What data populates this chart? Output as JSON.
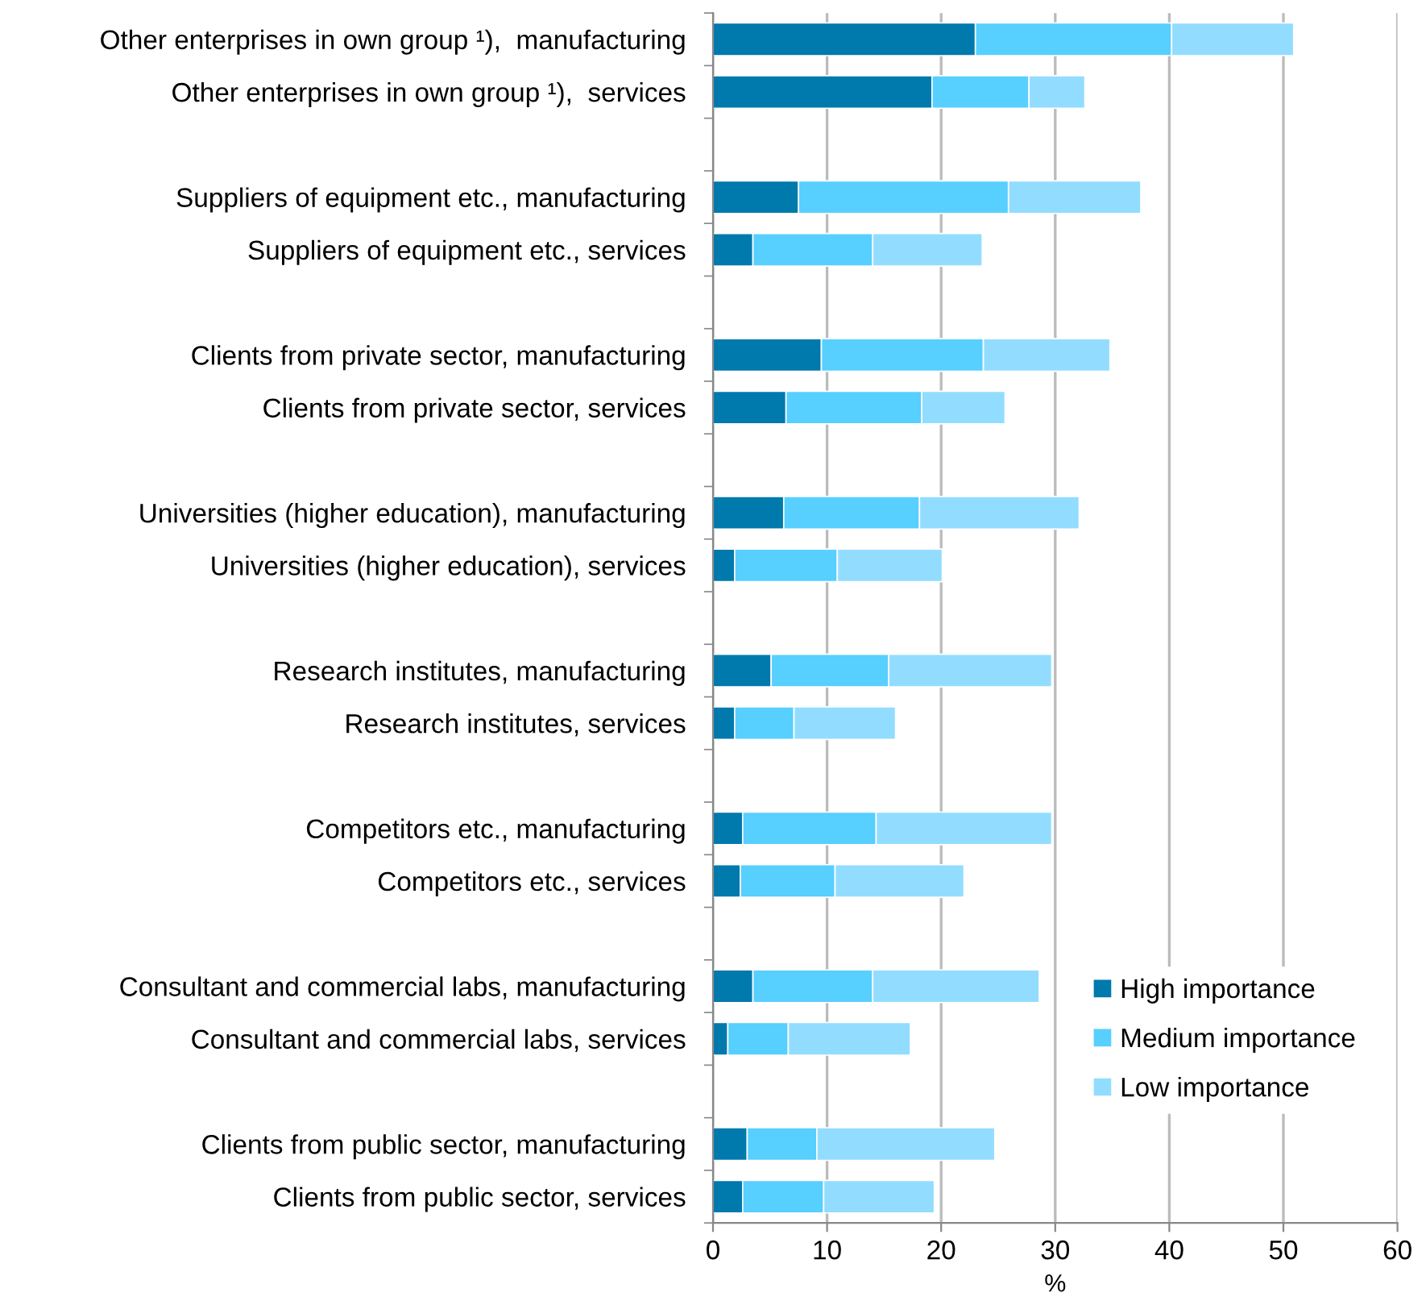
{
  "chart_data": {
    "type": "bar",
    "orientation": "horizontal",
    "stacked": true,
    "xlabel": "%",
    "categories": [
      "Other enterprises in own group ¹),  manufacturing",
      "Other enterprises in own group ¹),  services",
      null,
      "Suppliers of equipment etc., manufacturing",
      "Suppliers of equipment etc., services",
      null,
      "Clients from private sector, manufacturing",
      "Clients from private sector, services",
      null,
      "Universities (higher education), manufacturing",
      "Universities (higher education), services",
      null,
      "Research institutes, manufacturing",
      "Research institutes, services",
      null,
      "Competitors etc., manufacturing",
      "Competitors etc., services",
      null,
      "Consultant and commercial labs, manufacturing",
      "Consultant and commercial labs, services",
      null,
      "Clients from public sector, manufacturing",
      "Clients from public sector, services"
    ],
    "series": [
      {
        "name": "High importance",
        "color": "#0079ad",
        "values": [
          23.0,
          19.2,
          null,
          7.5,
          3.5,
          null,
          9.5,
          6.4,
          null,
          6.2,
          1.9,
          null,
          5.1,
          1.9,
          null,
          2.6,
          2.4,
          null,
          3.5,
          1.3,
          null,
          3.0,
          2.6
        ]
      },
      {
        "name": "Medium importance",
        "color": "#57cfff",
        "values": [
          17.2,
          8.5,
          null,
          18.4,
          10.5,
          null,
          14.2,
          11.9,
          null,
          11.9,
          9.0,
          null,
          10.3,
          5.2,
          null,
          11.7,
          8.3,
          null,
          10.5,
          5.3,
          null,
          6.1,
          7.1
        ]
      },
      {
        "name": "Low importance",
        "color": "#92ddff",
        "values": [
          10.7,
          4.9,
          null,
          11.6,
          9.6,
          null,
          11.1,
          7.3,
          null,
          14.0,
          9.2,
          null,
          14.3,
          8.9,
          null,
          15.4,
          11.3,
          null,
          14.6,
          10.7,
          null,
          15.6,
          9.7
        ]
      }
    ],
    "xlim": [
      0,
      60
    ],
    "xticks": [
      0,
      10,
      20,
      30,
      40,
      50,
      60
    ],
    "grid": "x",
    "legend": "bottom right"
  }
}
